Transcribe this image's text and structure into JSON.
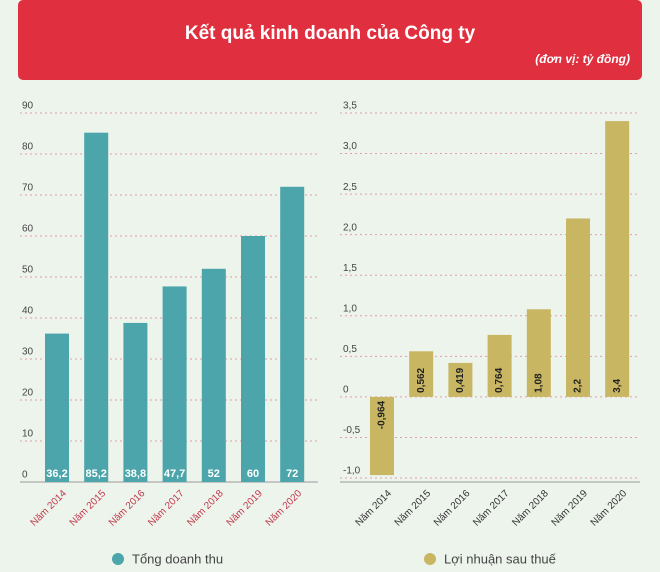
{
  "header": {
    "title": "Kết quả kinh doanh của Công ty",
    "subtitle": "(đơn vị: tỷ đồng)"
  },
  "chart_data": [
    {
      "type": "bar",
      "categories": [
        "Năm 2014",
        "Năm 2015",
        "Năm 2016",
        "Năm 2017",
        "Năm 2018",
        "Năm 2019",
        "Năm 2020"
      ],
      "series": [
        {
          "name": "Tổng doanh thu",
          "color": "#4ba5aa",
          "values": [
            36.2,
            85.2,
            38.8,
            47.7,
            52,
            60,
            72
          ],
          "value_labels": [
            "36,2",
            "85,2",
            "38,8",
            "47,7",
            "52",
            "60",
            "72"
          ]
        }
      ],
      "ylim": [
        0,
        90
      ],
      "yticks": [
        0,
        10,
        20,
        30,
        40,
        50,
        60,
        70,
        80,
        90
      ],
      "grid": true
    },
    {
      "type": "bar",
      "categories": [
        "Năm 2014",
        "Năm 2015",
        "Năm 2016",
        "Năm 2017",
        "Năm 2018",
        "Năm 2019",
        "Năm 2020"
      ],
      "series": [
        {
          "name": "Lợi nhuận sau thuế",
          "color": "#c8b662",
          "values": [
            -0.964,
            0.562,
            0.419,
            0.764,
            1.08,
            2.2,
            3.4
          ],
          "value_labels": [
            "-0,964",
            "0,562",
            "0,419",
            "0,764",
            "1,08",
            "2,2",
            "3,4"
          ]
        }
      ],
      "ylim": [
        -1,
        3.5
      ],
      "yticks": [
        {
          "value": -1,
          "label": "-1,0"
        },
        {
          "value": -0.5,
          "label": "-0,5"
        },
        0,
        {
          "value": 0.5,
          "label": "0,5"
        },
        {
          "value": 1,
          "label": "1,0"
        },
        {
          "value": 1.5,
          "label": "1,5"
        },
        {
          "value": 2,
          "label": "2,0"
        },
        {
          "value": 2.5,
          "label": "2,5"
        },
        {
          "value": 3,
          "label": "3,0"
        },
        {
          "value": 3.5,
          "label": "3,5"
        }
      ],
      "grid": true
    }
  ]
}
